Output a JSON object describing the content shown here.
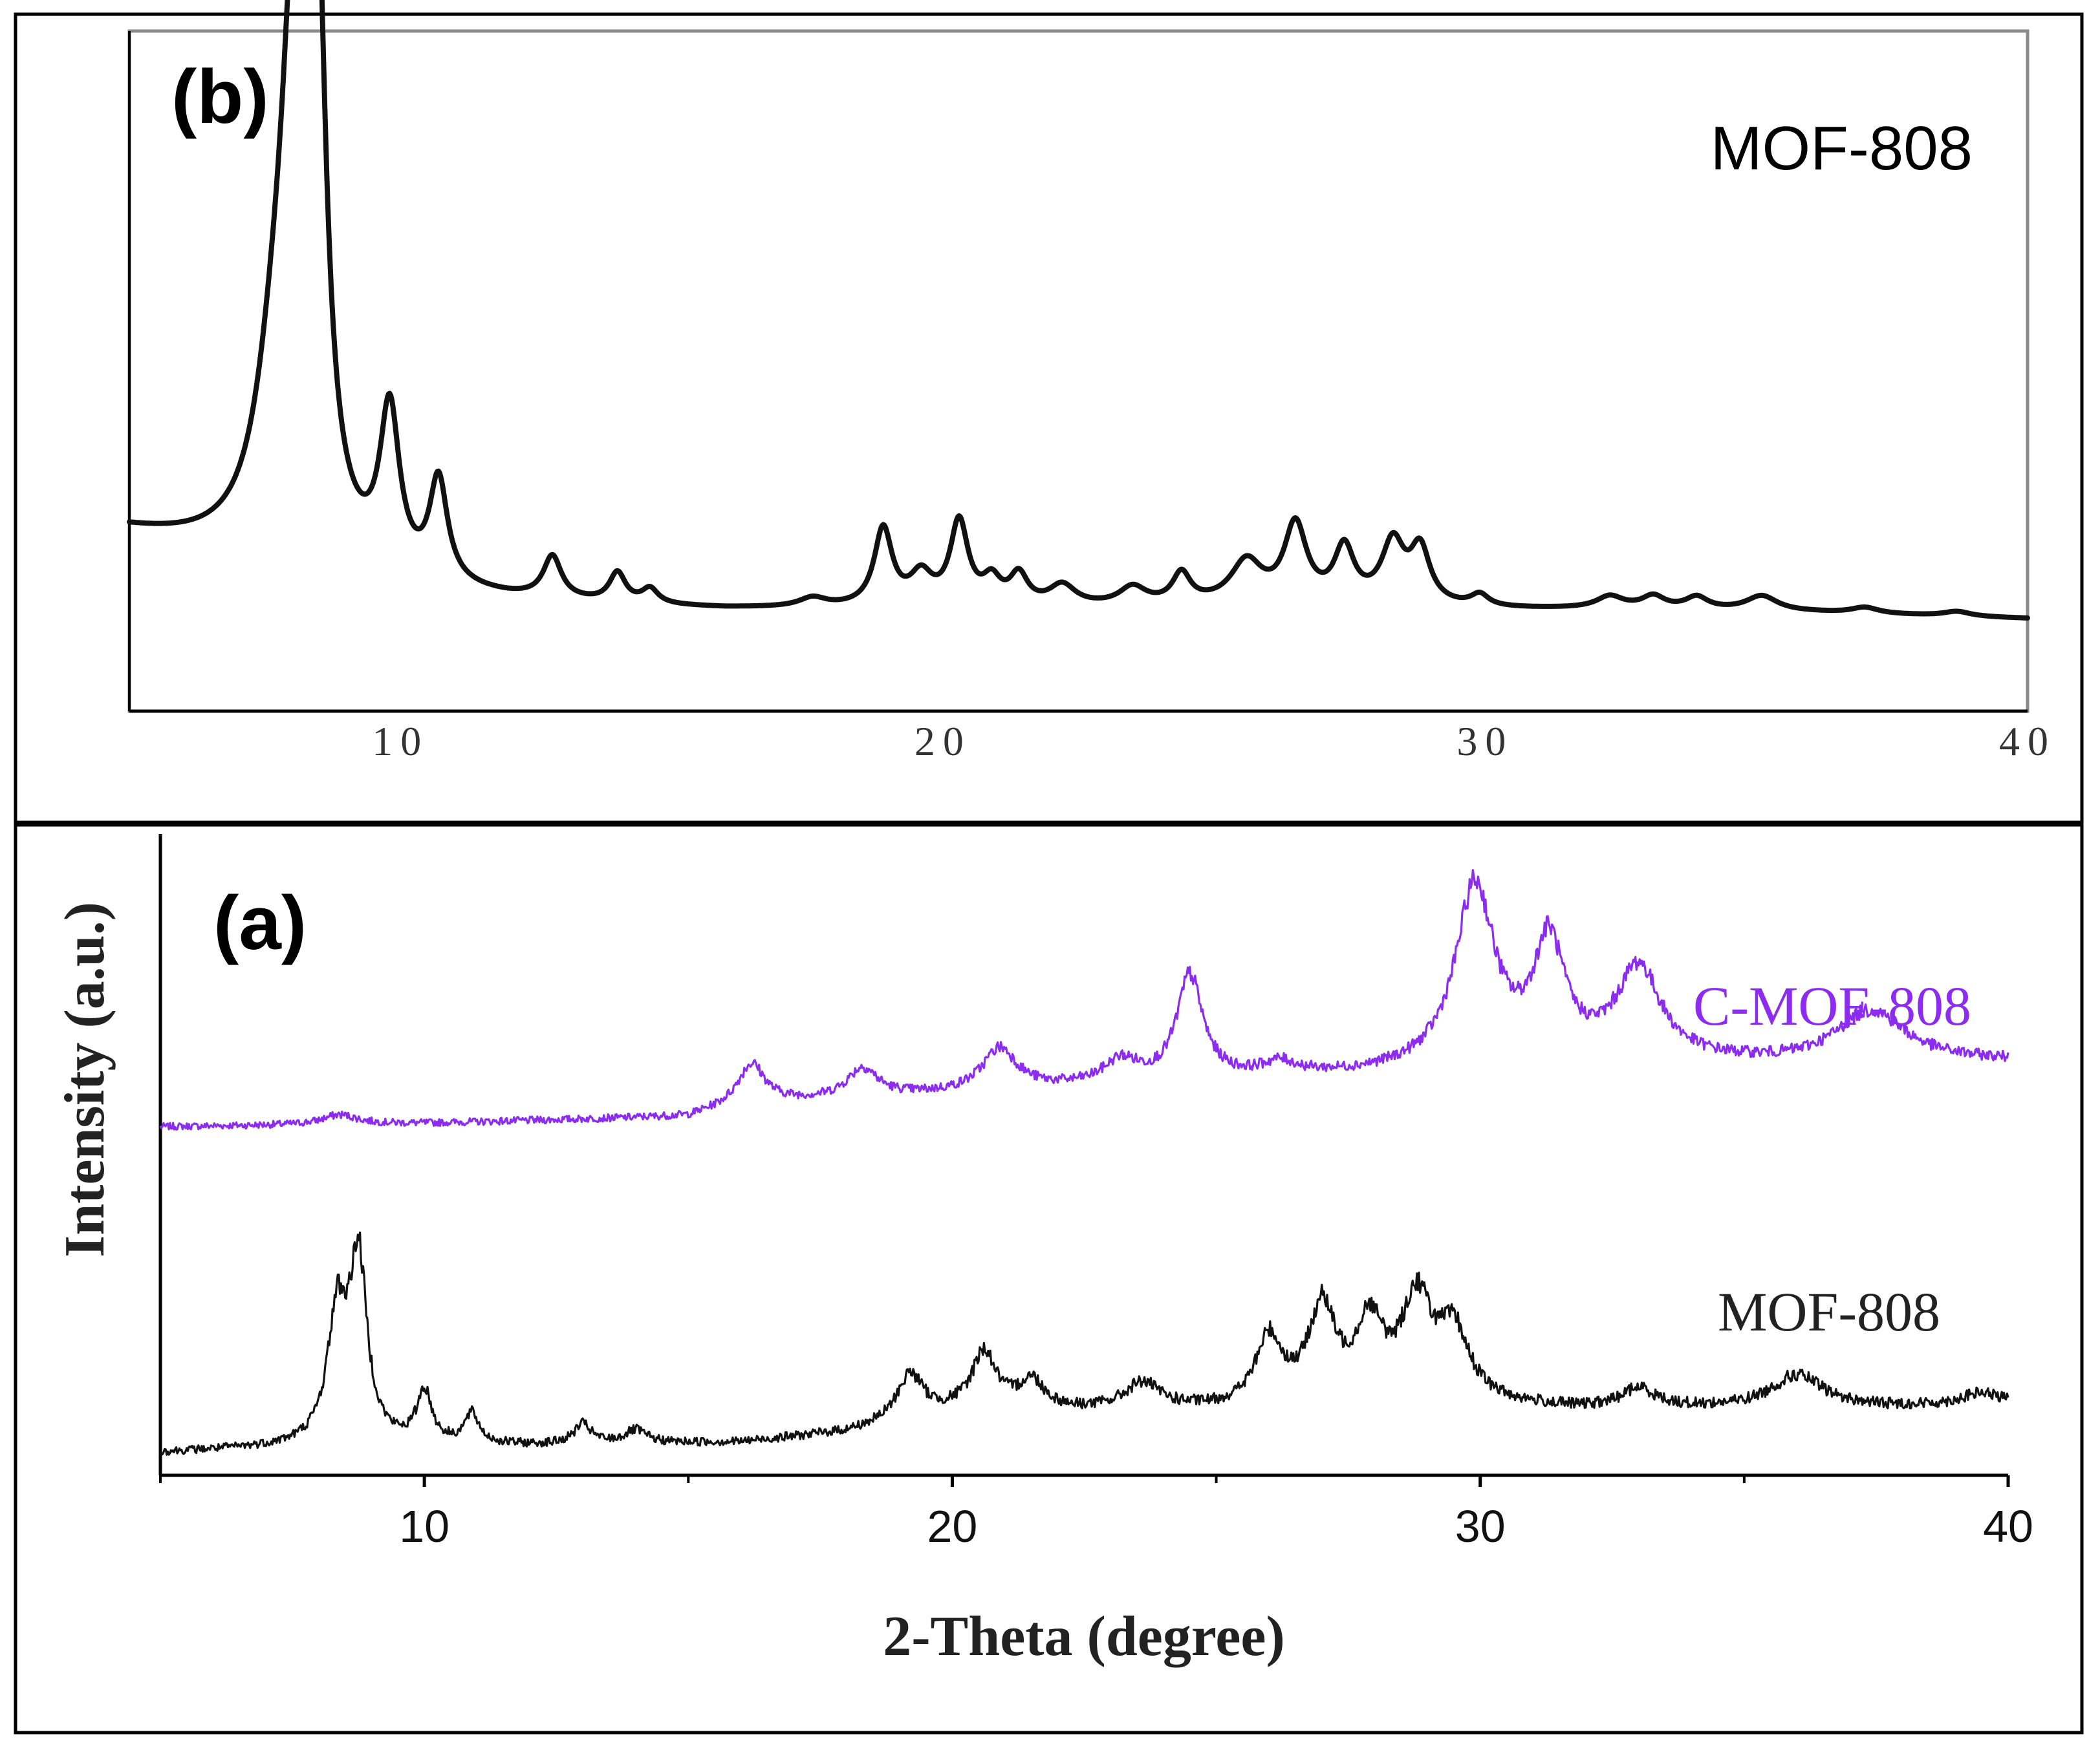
{
  "chart_data": [
    {
      "panel": "(b)",
      "type": "line",
      "title": "",
      "xlabel": "",
      "ylabel": "",
      "xlim": [
        5,
        40
      ],
      "x_ticks": [
        "10",
        "20",
        "30",
        "40"
      ],
      "x_tick_values": [
        10,
        20,
        30,
        40
      ],
      "legend": "top-right",
      "series": [
        {
          "name": "MOF-808",
          "color": "#111111",
          "noise": 0,
          "baseline": [
            [
              5,
              0.18
            ],
            [
              7,
              0.14
            ],
            [
              8,
              0.12
            ],
            [
              10,
              0.08
            ],
            [
              12,
              0.065
            ],
            [
              14,
              0.055
            ],
            [
              16,
              0.05
            ],
            [
              22,
              0.05
            ],
            [
              25,
              0.055
            ],
            [
              28,
              0.055
            ],
            [
              30,
              0.05
            ],
            [
              33,
              0.05
            ],
            [
              36,
              0.045
            ],
            [
              40,
              0.035
            ]
          ],
          "peaks": [
            {
              "x": 8.05,
              "h": 0.78,
              "w": 0.28
            },
            {
              "x": 8.45,
              "h": 0.9,
              "w": 0.2
            },
            {
              "x": 7.7,
              "h": 0.25,
              "w": 0.45
            },
            {
              "x": 9.8,
              "h": 0.27,
              "w": 0.22
            },
            {
              "x": 10.7,
              "h": 0.17,
              "w": 0.2
            },
            {
              "x": 12.8,
              "h": 0.07,
              "w": 0.2
            },
            {
              "x": 14.0,
              "h": 0.05,
              "w": 0.18
            },
            {
              "x": 14.6,
              "h": 0.025,
              "w": 0.18
            },
            {
              "x": 17.6,
              "h": 0.015,
              "w": 0.3
            },
            {
              "x": 18.9,
              "h": 0.13,
              "w": 0.2
            },
            {
              "x": 19.6,
              "h": 0.05,
              "w": 0.25
            },
            {
              "x": 20.3,
              "h": 0.14,
              "w": 0.2
            },
            {
              "x": 20.9,
              "h": 0.04,
              "w": 0.2
            },
            {
              "x": 21.4,
              "h": 0.05,
              "w": 0.2
            },
            {
              "x": 22.2,
              "h": 0.035,
              "w": 0.3
            },
            {
              "x": 23.5,
              "h": 0.03,
              "w": 0.3
            },
            {
              "x": 24.4,
              "h": 0.05,
              "w": 0.2
            },
            {
              "x": 25.6,
              "h": 0.07,
              "w": 0.35
            },
            {
              "x": 26.5,
              "h": 0.13,
              "w": 0.25
            },
            {
              "x": 27.4,
              "h": 0.09,
              "w": 0.22
            },
            {
              "x": 28.3,
              "h": 0.1,
              "w": 0.25
            },
            {
              "x": 28.8,
              "h": 0.09,
              "w": 0.22
            },
            {
              "x": 29.9,
              "h": 0.02,
              "w": 0.2
            },
            {
              "x": 32.3,
              "h": 0.02,
              "w": 0.3
            },
            {
              "x": 33.1,
              "h": 0.02,
              "w": 0.25
            },
            {
              "x": 33.9,
              "h": 0.02,
              "w": 0.25
            },
            {
              "x": 35.1,
              "h": 0.025,
              "w": 0.35
            },
            {
              "x": 37.0,
              "h": 0.01,
              "w": 0.3
            },
            {
              "x": 38.7,
              "h": 0.008,
              "w": 0.3
            }
          ]
        }
      ]
    },
    {
      "panel": "(a)",
      "type": "line",
      "title": "",
      "xlabel": "2-Theta (degree)",
      "ylabel": "Intensity (a.u.)",
      "xlim": [
        5,
        40
      ],
      "x_ticks": [
        "10",
        "20",
        "30",
        "40"
      ],
      "x_tick_values": [
        10,
        20,
        30,
        40
      ],
      "legend": "right, next to each trace",
      "series": [
        {
          "name": "C-MOF-808",
          "color": "#8b2cf0",
          "offset": 1.05,
          "noise": 0.035,
          "baseline": [
            [
              5,
              0.0
            ],
            [
              10,
              0.01
            ],
            [
              15,
              0.03
            ],
            [
              16,
              0.07
            ],
            [
              20,
              0.1
            ],
            [
              25,
              0.14
            ],
            [
              28,
              0.16
            ],
            [
              32,
              0.2
            ],
            [
              36,
              0.19
            ],
            [
              40,
              0.2
            ]
          ],
          "peaks": [
            {
              "x": 8.4,
              "h": 0.03,
              "w": 0.4
            },
            {
              "x": 16.2,
              "h": 0.12,
              "w": 0.3
            },
            {
              "x": 18.3,
              "h": 0.09,
              "w": 0.35
            },
            {
              "x": 20.9,
              "h": 0.13,
              "w": 0.4
            },
            {
              "x": 23.2,
              "h": 0.07,
              "w": 0.4
            },
            {
              "x": 24.5,
              "h": 0.32,
              "w": 0.3
            },
            {
              "x": 26.2,
              "h": 0.04,
              "w": 0.4
            },
            {
              "x": 29.9,
              "h": 0.55,
              "w": 0.45
            },
            {
              "x": 31.3,
              "h": 0.35,
              "w": 0.35
            },
            {
              "x": 33.0,
              "h": 0.28,
              "w": 0.5
            },
            {
              "x": 37.4,
              "h": 0.16,
              "w": 0.8
            }
          ]
        },
        {
          "name": "MOF-808",
          "color": "#111111",
          "offset": 0.05,
          "noise": 0.04,
          "baseline": [
            [
              5,
              0.0
            ],
            [
              8,
              0.02
            ],
            [
              12,
              0.02
            ],
            [
              16,
              0.03
            ],
            [
              18,
              0.06
            ],
            [
              20,
              0.12
            ],
            [
              25,
              0.13
            ],
            [
              28,
              0.16
            ],
            [
              32,
              0.13
            ],
            [
              40,
              0.14
            ]
          ],
          "peaks": [
            {
              "x": 8.35,
              "h": 0.38,
              "w": 0.22
            },
            {
              "x": 8.75,
              "h": 0.55,
              "w": 0.2
            },
            {
              "x": 10.0,
              "h": 0.16,
              "w": 0.17
            },
            {
              "x": 10.9,
              "h": 0.09,
              "w": 0.17
            },
            {
              "x": 13.0,
              "h": 0.06,
              "w": 0.2
            },
            {
              "x": 14.0,
              "h": 0.04,
              "w": 0.25
            },
            {
              "x": 19.2,
              "h": 0.14,
              "w": 0.3
            },
            {
              "x": 20.6,
              "h": 0.18,
              "w": 0.28
            },
            {
              "x": 21.5,
              "h": 0.09,
              "w": 0.3
            },
            {
              "x": 23.6,
              "h": 0.08,
              "w": 0.4
            },
            {
              "x": 26.0,
              "h": 0.2,
              "w": 0.3
            },
            {
              "x": 27.0,
              "h": 0.28,
              "w": 0.3
            },
            {
              "x": 27.9,
              "h": 0.22,
              "w": 0.3
            },
            {
              "x": 28.8,
              "h": 0.3,
              "w": 0.35
            },
            {
              "x": 29.5,
              "h": 0.2,
              "w": 0.35
            },
            {
              "x": 33.0,
              "h": 0.06,
              "w": 0.4
            },
            {
              "x": 36.0,
              "h": 0.1,
              "w": 0.6
            },
            {
              "x": 39.5,
              "h": 0.04,
              "w": 0.5
            }
          ]
        }
      ]
    }
  ]
}
